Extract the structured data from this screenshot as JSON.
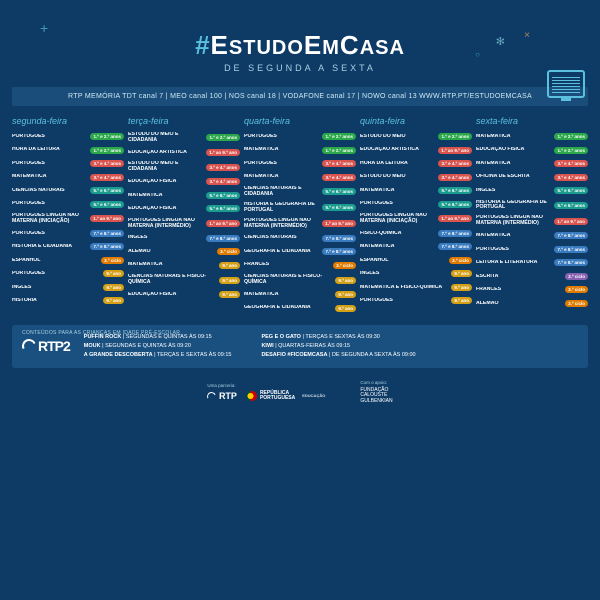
{
  "colors": {
    "bg": "#0d3b66",
    "accent": "#5bc0de",
    "panel": "#1a4d7a",
    "tag_green": "#2ba84a",
    "tag_red": "#d9534f",
    "tag_teal": "#1c9c8e",
    "tag_blue": "#3a7bbf",
    "tag_orange": "#e07b00",
    "tag_yellow": "#d4a017",
    "tag_purple": "#8860b0"
  },
  "header": {
    "hash": "#",
    "title_part1": "E",
    "title_small1": "STUDO",
    "title_part2": "E",
    "title_small2": "M",
    "title_part3": "C",
    "title_small3": "ASA",
    "subtitle": "DE SEGUNDA A SEXTA"
  },
  "channels": "RTP MEMÓRIA   TDT canal 7 | MEO canal 100 | NOS canal 18 | VODAFONE canal 17 | NOWO canal 13     WWW.RTP.PT/ESTUDOEMCASA",
  "days": [
    {
      "name": "segunda-feira",
      "rows": [
        {
          "s": "PORTUGUÊS",
          "t": "1.º e 2.º anos",
          "c": "tag_green"
        },
        {
          "s": "HORA DA LEITURA",
          "t": "1.º e 2.º anos",
          "c": "tag_green"
        },
        {
          "s": "PORTUGUÊS",
          "t": "3.º e 4.º anos",
          "c": "tag_red"
        },
        {
          "s": "MATEMÁTICA",
          "t": "3.º e 4.º anos",
          "c": "tag_red"
        },
        {
          "s": "CIÊNCIAS NATURAIS",
          "t": "5.º e 6.º anos",
          "c": "tag_teal"
        },
        {
          "s": "PORTUGUÊS",
          "t": "5.º e 6.º anos",
          "c": "tag_teal"
        },
        {
          "s": "PORTUGUÊS LÍNGUA NÃO MATERNA (INICIAÇÃO)",
          "t": "1.º ao 9.º ano",
          "c": "tag_red"
        },
        {
          "s": "PORTUGUÊS",
          "t": "7.º e 8.º anos",
          "c": "tag_blue"
        },
        {
          "s": "HISTÓRIA E CIDADANIA",
          "t": "7.º e 8.º anos",
          "c": "tag_blue"
        },
        {
          "s": "ESPANHOL",
          "t": "3.º ciclo",
          "c": "tag_orange"
        },
        {
          "s": "PORTUGUÊS",
          "t": "9.º ano",
          "c": "tag_yellow"
        },
        {
          "s": "INGLÊS",
          "t": "9.º ano",
          "c": "tag_yellow"
        },
        {
          "s": "HISTÓRIA",
          "t": "9.º ano",
          "c": "tag_yellow"
        }
      ]
    },
    {
      "name": "terça-feira",
      "rows": [
        {
          "s": "ESTUDO DO MEIO E CIDADANIA",
          "t": "1.º e 2.º anos",
          "c": "tag_green"
        },
        {
          "s": "EDUCAÇÃO ARTÍSTICA",
          "t": "1.º ao 9.º ano",
          "c": "tag_red"
        },
        {
          "s": "ESTUDO DO MEIO E CIDADANIA",
          "t": "3.º e 4.º anos",
          "c": "tag_red"
        },
        {
          "s": "EDUCAÇÃO FÍSICA",
          "t": "3.º e 4.º anos",
          "c": "tag_red"
        },
        {
          "s": "MATEMÁTICA",
          "t": "5.º e 6.º anos",
          "c": "tag_teal"
        },
        {
          "s": "EDUCAÇÃO FÍSICA",
          "t": "5.º e 6.º anos",
          "c": "tag_teal"
        },
        {
          "s": "PORTUGUÊS LÍNGUA NÃO MATERNA (INTERMÉDIO)",
          "t": "1.º ao 9.º ano",
          "c": "tag_red"
        },
        {
          "s": "INGLÊS",
          "t": "7.º e 8.º anos",
          "c": "tag_blue"
        },
        {
          "s": "ALEMÃO",
          "t": "3.º ciclo",
          "c": "tag_orange"
        },
        {
          "s": "MATEMÁTICA",
          "t": "9.º ano",
          "c": "tag_yellow"
        },
        {
          "s": "CIÊNCIAS NATURAIS E FÍSICO-QUÍMICA",
          "t": "9.º ano",
          "c": "tag_yellow"
        },
        {
          "s": "EDUCAÇÃO FÍSICA",
          "t": "9.º ano",
          "c": "tag_yellow"
        }
      ]
    },
    {
      "name": "quarta-feira",
      "rows": [
        {
          "s": "PORTUGUÊS",
          "t": "1.º e 2.º anos",
          "c": "tag_green"
        },
        {
          "s": "MATEMÁTICA",
          "t": "1.º e 2.º anos",
          "c": "tag_green"
        },
        {
          "s": "PORTUGUÊS",
          "t": "3.º e 4.º anos",
          "c": "tag_red"
        },
        {
          "s": "MATEMÁTICA",
          "t": "3.º e 4.º anos",
          "c": "tag_red"
        },
        {
          "s": "CIÊNCIAS NATURAIS E CIDADANIA",
          "t": "5.º e 6.º anos",
          "c": "tag_teal"
        },
        {
          "s": "HISTÓRIA E GEOGRAFIA DE PORTUGAL",
          "t": "5.º e 6.º anos",
          "c": "tag_teal"
        },
        {
          "s": "PORTUGUÊS LÍNGUA NÃO MATERNA (INTERMÉDIO)",
          "t": "1.º ao 9.º ano",
          "c": "tag_red"
        },
        {
          "s": "CIÊNCIAS NATURAIS",
          "t": "7.º e 8.º anos",
          "c": "tag_blue"
        },
        {
          "s": "GEOGRAFIA E CIDADANIA",
          "t": "7.º e 8.º anos",
          "c": "tag_blue"
        },
        {
          "s": "FRANCÊS",
          "t": "3.º ciclo",
          "c": "tag_orange"
        },
        {
          "s": "CIÊNCIAS NATURAIS E FÍSICO-QUÍMICA",
          "t": "9.º ano",
          "c": "tag_yellow"
        },
        {
          "s": "MATEMÁTICA",
          "t": "9.º ano",
          "c": "tag_yellow"
        },
        {
          "s": "GEOGRAFIA E CIDADANIA",
          "t": "9.º ano",
          "c": "tag_yellow"
        }
      ]
    },
    {
      "name": "quinta-feira",
      "rows": [
        {
          "s": "ESTUDO DO MEIO",
          "t": "1.º e 2.º anos",
          "c": "tag_green"
        },
        {
          "s": "EDUCAÇÃO ARTÍSTICA",
          "t": "1.º ao 9.º ano",
          "c": "tag_red"
        },
        {
          "s": "HORA DA LEITURA",
          "t": "3.º e 4.º anos",
          "c": "tag_red"
        },
        {
          "s": "ESTUDO DO MEIO",
          "t": "3.º e 4.º anos",
          "c": "tag_red"
        },
        {
          "s": "MATEMÁTICA",
          "t": "5.º e 6.º anos",
          "c": "tag_teal"
        },
        {
          "s": "PORTUGUÊS",
          "t": "5.º e 6.º anos",
          "c": "tag_teal"
        },
        {
          "s": "PORTUGUÊS LÍNGUA NÃO MATERNA (INICIAÇÃO)",
          "t": "1.º ao 9.º ano",
          "c": "tag_red"
        },
        {
          "s": "FÍSICO-QUÍMICA",
          "t": "7.º e 8.º anos",
          "c": "tag_blue"
        },
        {
          "s": "MATEMÁTICA",
          "t": "7.º e 8.º anos",
          "c": "tag_blue"
        },
        {
          "s": "ESPANHOL",
          "t": "3.º ciclo",
          "c": "tag_orange"
        },
        {
          "s": "INGLÊS",
          "t": "9.º ano",
          "c": "tag_yellow"
        },
        {
          "s": "MATEMÁTICA E FÍSICO-QUÍMICA",
          "t": "9.º ano",
          "c": "tag_yellow"
        },
        {
          "s": "PORTUGUÊS",
          "t": "9.º ano",
          "c": "tag_yellow"
        }
      ]
    },
    {
      "name": "sexta-feira",
      "rows": [
        {
          "s": "MATEMÁTICA",
          "t": "1.º e 2.º anos",
          "c": "tag_green"
        },
        {
          "s": "EDUCAÇÃO FÍSICA",
          "t": "1.º e 2.º anos",
          "c": "tag_green"
        },
        {
          "s": "MATEMÁTICA",
          "t": "3.º e 4.º anos",
          "c": "tag_red"
        },
        {
          "s": "OFICINA DE ESCRITA",
          "t": "3.º e 4.º anos",
          "c": "tag_red"
        },
        {
          "s": "INGLÊS",
          "t": "5.º e 6.º anos",
          "c": "tag_teal"
        },
        {
          "s": "HISTÓRIA E GEOGRAFIA DE PORTUGAL",
          "t": "5.º e 6.º anos",
          "c": "tag_teal"
        },
        {
          "s": "PORTUGUÊS LÍNGUA NÃO MATERNA (INTERMÉDIO)",
          "t": "1.º ao 9.º ano",
          "c": "tag_red"
        },
        {
          "s": "MATEMÁTICA",
          "t": "7.º e 8.º anos",
          "c": "tag_blue"
        },
        {
          "s": "PORTUGUÊS",
          "t": "7.º e 8.º anos",
          "c": "tag_blue"
        },
        {
          "s": "LEITURA E LITERATURA",
          "t": "7.º e 8.º anos",
          "c": "tag_blue"
        },
        {
          "s": "ESCRITA",
          "t": "3.º ciclo",
          "c": "tag_purple"
        },
        {
          "s": "FRANCÊS",
          "t": "3.º ciclo",
          "c": "tag_orange"
        },
        {
          "s": "ALEMÃO",
          "t": "3.º ciclo",
          "c": "tag_orange"
        }
      ]
    }
  ],
  "preschool": {
    "label": "CONTEÚDOS PARA AS CRIANÇAS EM IDADE PRÉ-ESCOLAR",
    "logo": "RTP2",
    "left": [
      "PUFFIN ROCK | SEGUNDAS E QUINTAS ÀS 09:15",
      "MOUK | SEGUNDAS E QUINTAS ÀS 09:20",
      "A GRANDE DESCOBERTA | TERÇAS E SEXTAS ÀS 09:15"
    ],
    "right": [
      "PEG E O GATO | TERÇAS E SEXTAS ÀS 09:30",
      "KIWI | QUARTAS-FEIRAS ÀS 09:15",
      "DESAFIO #FICOEMCASA | DE SEGUNDA A SEXTA ÀS 09:00"
    ]
  },
  "footer": {
    "partner_label": "Uma parceria:",
    "rtp": "RTP",
    "republica1": "REPÚBLICA",
    "republica2": "PORTUGUESA",
    "educacao": "EDUCAÇÃO",
    "support_label": "Com o apoio:",
    "gulb1": "FUNDAÇÃO",
    "gulb2": "CALOUSTE",
    "gulb3": "GULBENKIAN"
  }
}
